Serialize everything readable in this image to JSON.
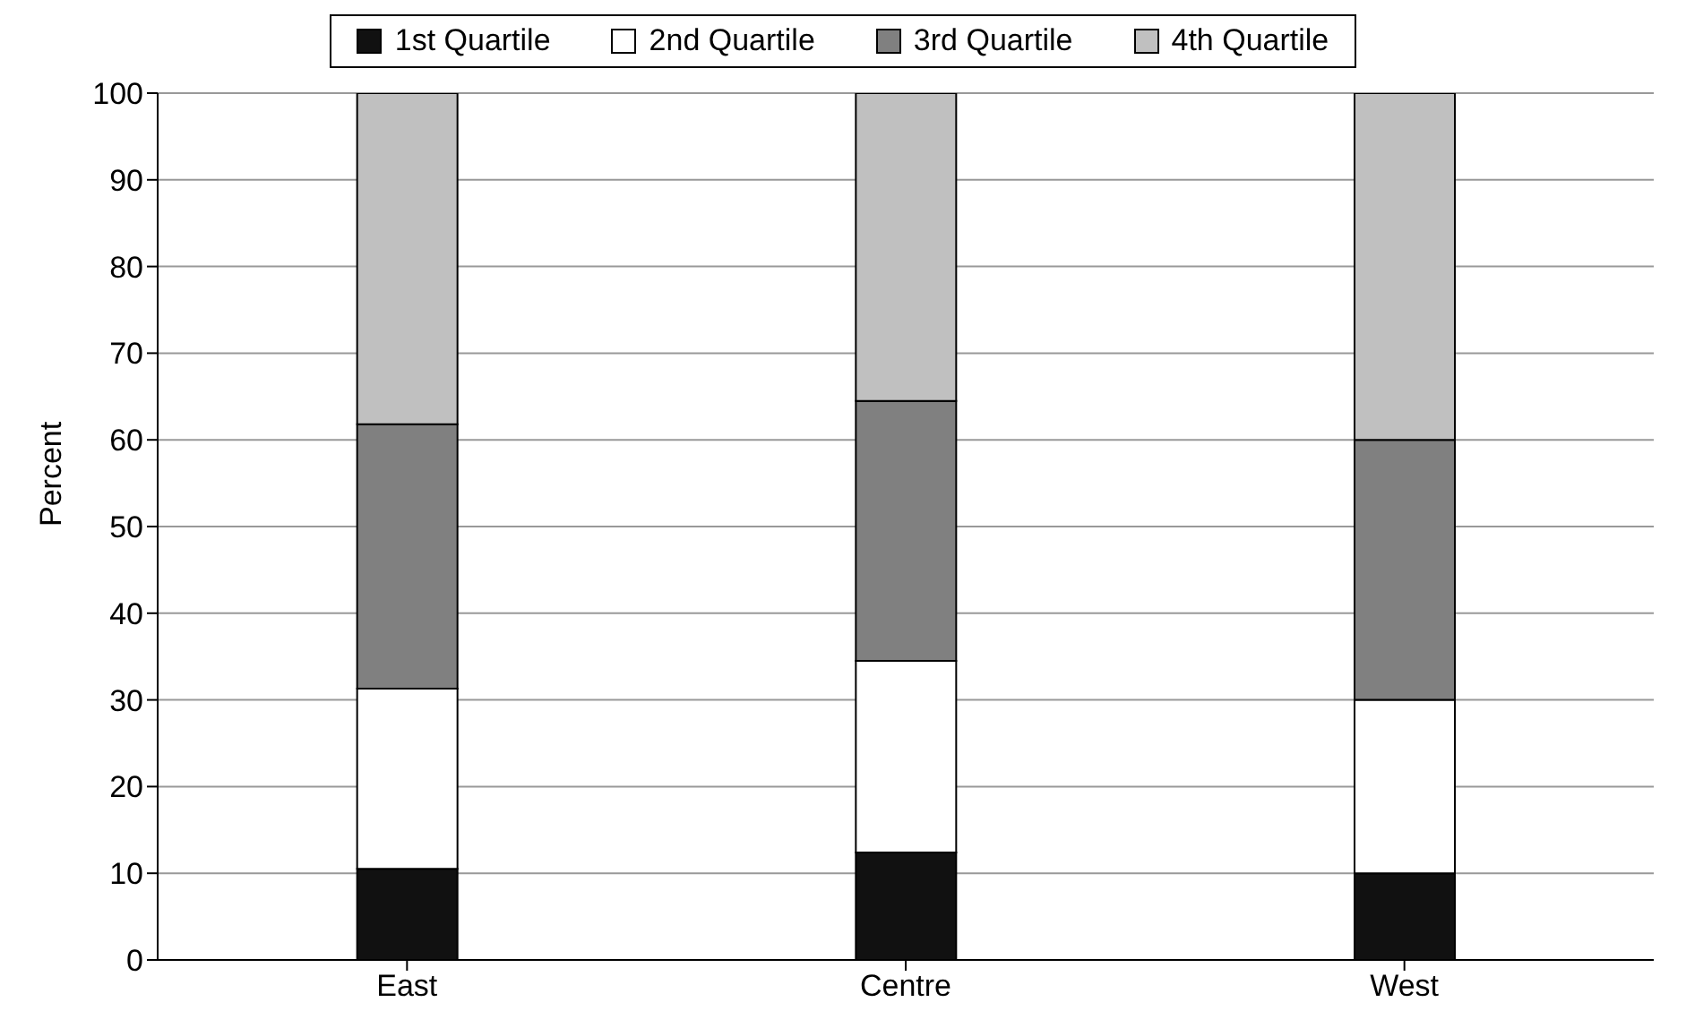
{
  "chart_data": {
    "type": "bar",
    "stacked": true,
    "ylabel": "Percent",
    "categories": [
      "East",
      "Centre",
      "West"
    ],
    "series": [
      {
        "name": "1st Quartile",
        "color": "#111111",
        "values": [
          10.5,
          12.4,
          10
        ]
      },
      {
        "name": "2nd Quartile",
        "color": "#ffffff",
        "values": [
          20.8,
          22.1,
          20
        ]
      },
      {
        "name": "3rd Quartile",
        "color": "#808080",
        "values": [
          30.5,
          30,
          30
        ]
      },
      {
        "name": "4th Quartile",
        "color": "#c0c0c0",
        "values": [
          38.2,
          35.5,
          40
        ]
      }
    ],
    "ylim": [
      0,
      100
    ],
    "yticks": [
      0,
      10,
      20,
      30,
      40,
      50,
      60,
      70,
      80,
      90,
      100
    ],
    "grid": "y",
    "legend": "top"
  }
}
